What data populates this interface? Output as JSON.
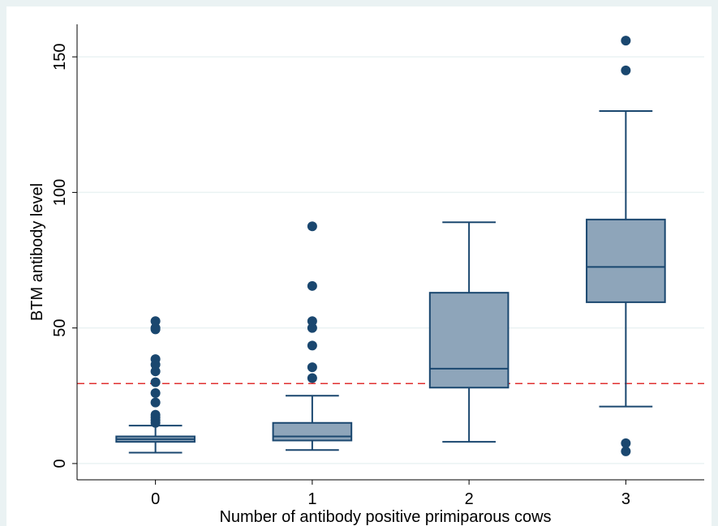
{
  "chart_data": {
    "type": "box",
    "xlabel": "Number of antibody positive primiparous cows",
    "ylabel": "BTM antibody level",
    "categories": [
      "0",
      "1",
      "2",
      "3"
    ],
    "ylim": [
      -6,
      162
    ],
    "yticks": [
      0,
      50,
      100,
      150
    ],
    "grid": true,
    "reference_line": {
      "y": 29.5,
      "color": "#e03030",
      "style": "dashed"
    },
    "colors": {
      "box_fill": "#8ea5ba",
      "box_stroke": "#1a476f",
      "outlier": "#1a476f",
      "grid": "#eaf2f3",
      "background": "#eaf2f3"
    },
    "boxes": [
      {
        "category": "0",
        "whisker_low": 4,
        "q1": 8,
        "median": 9,
        "q3": 10,
        "whisker_high": 14,
        "outliers": [
          15,
          16,
          17,
          18,
          22.5,
          26,
          30,
          34,
          36.5,
          38.5,
          49.5,
          50,
          52.5
        ]
      },
      {
        "category": "1",
        "whisker_low": 5,
        "q1": 8.5,
        "median": 10,
        "q3": 15,
        "whisker_high": 25,
        "outliers": [
          31.5,
          35.5,
          43.5,
          50,
          52.5,
          65.5,
          87.5
        ]
      },
      {
        "category": "2",
        "whisker_low": 8,
        "q1": 28,
        "median": 35,
        "q3": 63,
        "whisker_high": 89,
        "outliers": []
      },
      {
        "category": "3",
        "whisker_low": 21,
        "q1": 59.5,
        "median": 72.5,
        "q3": 90,
        "whisker_high": 130,
        "outliers": [
          4.5,
          7.5,
          145,
          156
        ]
      }
    ]
  }
}
